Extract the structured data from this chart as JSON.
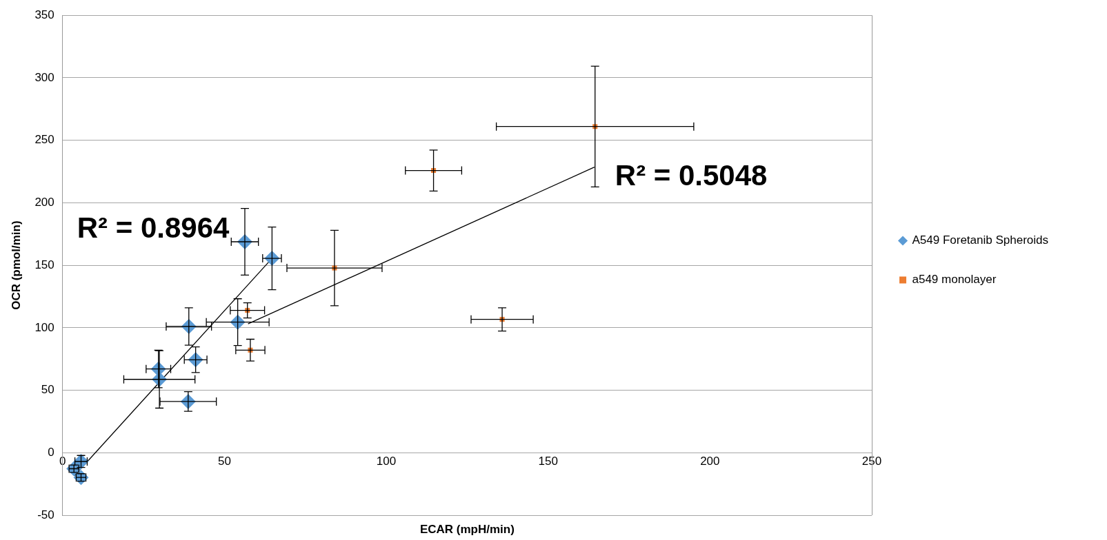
{
  "chart_data": {
    "type": "scatter",
    "xlabel": "ECAR (mpH/min)",
    "ylabel": "OCR (pmol/min)",
    "xlim": [
      0,
      250
    ],
    "xticks": [
      0,
      50,
      100,
      150,
      200,
      250
    ],
    "ylim": [
      -50,
      350
    ],
    "yticks": [
      -50,
      0,
      50,
      100,
      150,
      200,
      250,
      300,
      350
    ],
    "grid": "y",
    "legend": "right",
    "series": [
      {
        "name": "A549 Foretanib Spheroids",
        "color": "#5b9bd5",
        "marker": "diamond",
        "x": [
          56.3,
          64.7,
          39,
          54.1,
          41.1,
          29.6,
          29.9,
          38.8,
          5.7,
          3.5,
          5.7
        ],
        "values": [
          168.8,
          155.5,
          101,
          104.5,
          74.4,
          67,
          58.7,
          41,
          -7,
          -12.8,
          -19.8
        ],
        "errors": [
          26.7,
          25.1,
          14.9,
          18.7,
          10.3,
          15,
          23,
          7.9,
          4.8,
          3,
          3
        ],
        "xerrors": [
          4.2,
          2.9,
          7,
          9.7,
          3.5,
          3.8,
          11,
          8.7,
          1.9,
          1.5,
          1.5
        ]
      },
      {
        "name": "a549 monolayer",
        "color": "#ed7d31",
        "marker": "square",
        "x": [
          84,
          57.1,
          58,
          135.8,
          114.6,
          164.5
        ],
        "values": [
          147.8,
          113.9,
          82.1,
          106.7,
          225.8,
          261
        ],
        "errors": [
          30.2,
          6.1,
          8.7,
          9.3,
          16.4,
          48.3
        ],
        "xerrors": [
          14.7,
          5.3,
          4.5,
          9.6,
          8.7,
          30.5
        ]
      },
      {
        "type": "line",
        "color": "#000000",
        "marker": "none",
        "x": [
          3.7,
          64.7
        ],
        "values": [
          -18.3,
          155.5
        ]
      },
      {
        "type": "line",
        "color": "#000000",
        "marker": "none",
        "x": [
          57.3,
          164.3
        ],
        "values": [
          103.1,
          228.5
        ]
      }
    ],
    "annotations": [
      "R² = 0.8964",
      "R² = 0.5048"
    ]
  }
}
